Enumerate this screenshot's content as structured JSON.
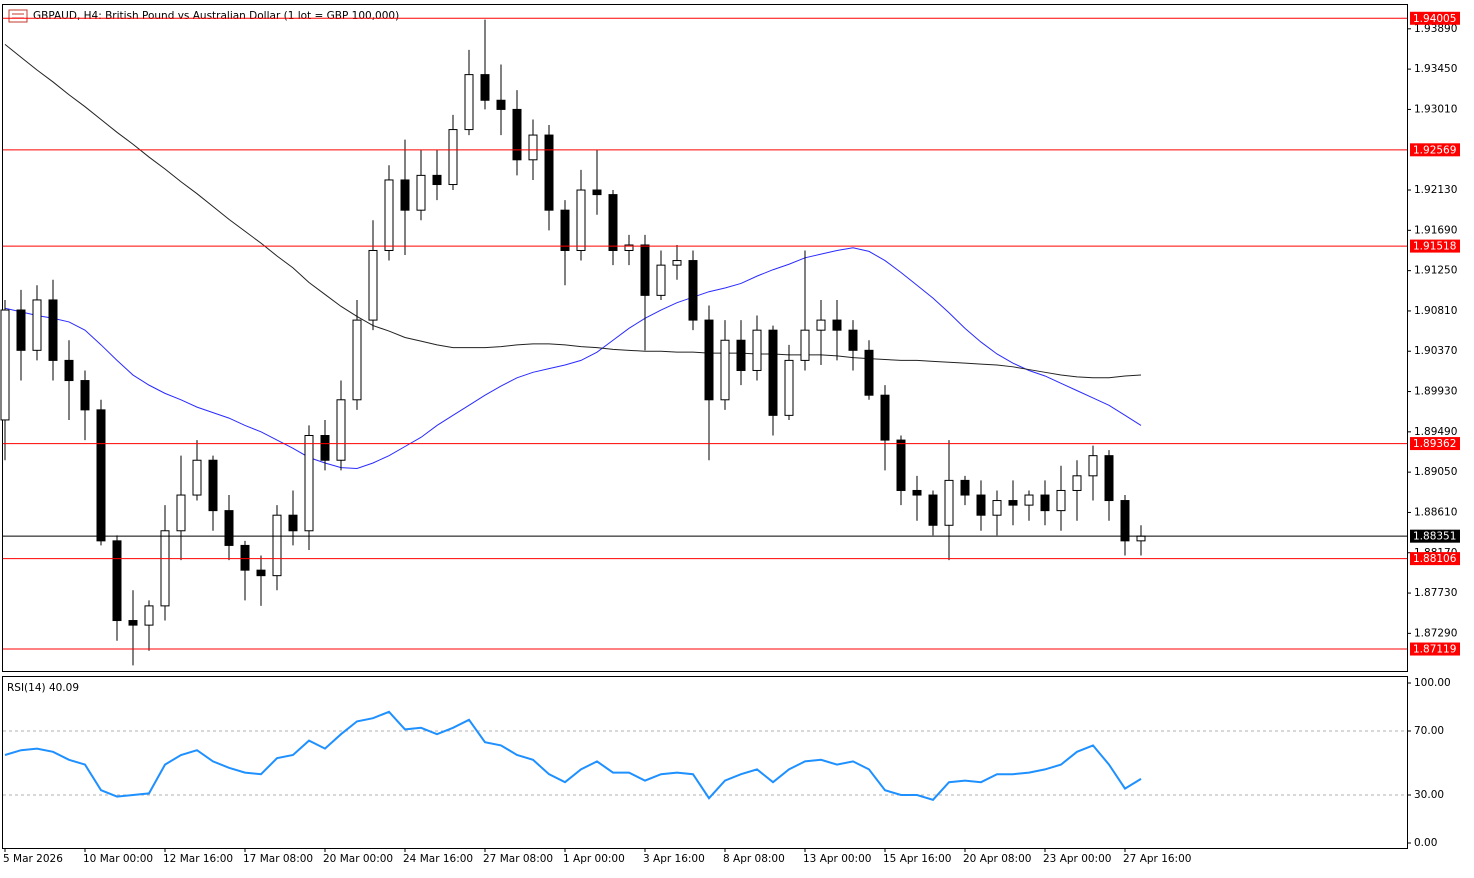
{
  "chart_data": [
    {
      "type": "candlestick",
      "title": "GBPAUD, H4:  British Pound vs Australian Dollar (1 lot = GBP 100,000)",
      "categories": [
        "5 Mar 2026",
        null,
        null,
        null,
        null,
        "10 Mar 00:00",
        null,
        null,
        null,
        null,
        "12 Mar 16:00",
        null,
        null,
        null,
        null,
        "17 Mar 08:00",
        null,
        null,
        null,
        null,
        "20 Mar 00:00",
        null,
        null,
        null,
        null,
        "24 Mar 16:00",
        null,
        null,
        null,
        null,
        "27 Mar 08:00",
        null,
        null,
        null,
        null,
        "1 Apr 00:00",
        null,
        null,
        null,
        null,
        "3 Apr 16:00",
        null,
        null,
        null,
        null,
        "8 Apr 08:00",
        null,
        null,
        null,
        null,
        "13 Apr 00:00",
        null,
        null,
        null,
        null,
        "15 Apr 16:00",
        null,
        null,
        null,
        null,
        "20 Apr 08:00",
        null,
        null,
        null,
        null,
        "23 Apr 00:00",
        null,
        null,
        null,
        null,
        "27 Apr 16:00",
        null
      ],
      "open": [
        1.8962,
        1.9082,
        1.9038,
        1.9093,
        1.9027,
        1.9005,
        1.8973,
        1.883,
        1.8743,
        1.8738,
        1.8759,
        1.8841,
        1.888,
        1.8918,
        1.8863,
        1.8825,
        1.8798,
        1.8792,
        1.8858,
        1.8841,
        1.8945,
        1.8918,
        1.8984,
        1.9071,
        1.9147,
        1.9224,
        1.9191,
        1.9229,
        1.9219,
        1.9279,
        1.9339,
        1.9311,
        1.9301,
        1.9246,
        1.9273,
        1.9191,
        1.9147,
        1.9213,
        1.9208,
        1.9147,
        1.9153,
        1.9098,
        1.9131,
        1.9136,
        1.9071,
        1.8984,
        1.9049,
        1.9016,
        1.906,
        1.8967,
        1.9027,
        1.906,
        1.9071,
        1.906,
        1.9038,
        1.8989,
        1.894,
        1.8885,
        1.888,
        1.8847,
        1.8896,
        1.888,
        1.8858,
        1.8874,
        1.8869,
        1.888,
        1.8863,
        1.8885,
        1.8901,
        1.8923,
        1.8874,
        1.883
      ],
      "high": [
        1.9093,
        1.9104,
        1.9109,
        1.9115,
        1.9049,
        1.9016,
        1.8984,
        1.8836,
        1.8776,
        1.8765,
        1.8869,
        1.8923,
        1.894,
        1.8923,
        1.888,
        1.883,
        1.8814,
        1.8869,
        1.8885,
        1.8956,
        1.8962,
        1.9005,
        1.9093,
        1.918,
        1.924,
        1.9268,
        1.9257,
        1.9257,
        1.9295,
        1.9366,
        1.9399,
        1.935,
        1.9322,
        1.929,
        1.9284,
        1.9202,
        1.9235,
        1.9257,
        1.9213,
        1.9164,
        1.9164,
        1.9147,
        1.9153,
        1.9147,
        1.9087,
        1.9071,
        1.9071,
        1.9076,
        1.9065,
        1.9044,
        1.9147,
        1.9093,
        1.9093,
        1.9071,
        1.9049,
        1.9,
        1.8945,
        1.8901,
        1.8885,
        1.894,
        1.8901,
        1.8896,
        1.8885,
        1.8896,
        1.8885,
        1.8896,
        1.8912,
        1.8918,
        1.8934,
        1.8929,
        1.888,
        1.8847
      ],
      "low": [
        1.8918,
        1.9005,
        1.9027,
        1.9005,
        1.8962,
        1.894,
        1.8825,
        1.8721,
        1.8694,
        1.871,
        1.8743,
        1.8809,
        1.8874,
        1.8841,
        1.8809,
        1.8765,
        1.8759,
        1.8776,
        1.8825,
        1.882,
        1.8907,
        1.8907,
        1.8973,
        1.906,
        1.9136,
        1.9142,
        1.918,
        1.9202,
        1.9213,
        1.9273,
        1.9301,
        1.9273,
        1.9229,
        1.9224,
        1.9169,
        1.9109,
        1.9136,
        1.9186,
        1.9131,
        1.9131,
        1.9038,
        1.9093,
        1.9115,
        1.906,
        1.8918,
        1.8973,
        1.9,
        1.9005,
        1.8945,
        1.8962,
        1.9016,
        1.9022,
        1.9027,
        1.9016,
        1.8984,
        1.8907,
        1.8869,
        1.8852,
        1.8836,
        1.8809,
        1.8869,
        1.8841,
        1.8836,
        1.8847,
        1.8852,
        1.8847,
        1.8841,
        1.8852,
        1.8874,
        1.8852,
        1.8814,
        1.8814
      ],
      "close": [
        1.9082,
        1.9038,
        1.9093,
        1.9027,
        1.9005,
        1.8973,
        1.883,
        1.8743,
        1.8738,
        1.8759,
        1.8841,
        1.888,
        1.8918,
        1.8863,
        1.8825,
        1.8798,
        1.8792,
        1.8858,
        1.8841,
        1.8945,
        1.8918,
        1.8984,
        1.9071,
        1.9147,
        1.9224,
        1.9191,
        1.9229,
        1.9219,
        1.9279,
        1.9339,
        1.9311,
        1.9301,
        1.9246,
        1.9273,
        1.9191,
        1.9147,
        1.9213,
        1.9208,
        1.9147,
        1.9153,
        1.9098,
        1.9131,
        1.9136,
        1.9071,
        1.8984,
        1.9049,
        1.9016,
        1.906,
        1.8967,
        1.9027,
        1.906,
        1.9071,
        1.906,
        1.9038,
        1.8989,
        1.894,
        1.8885,
        1.888,
        1.8847,
        1.8896,
        1.888,
        1.8858,
        1.8874,
        1.8869,
        1.888,
        1.8863,
        1.8885,
        1.8901,
        1.8923,
        1.8874,
        1.883,
        1.88351
      ],
      "color": "#000000",
      "lines": [
        {
          "color": "#2a2aff",
          "values": [
            1.9084,
            1.908,
            1.9076,
            1.9073,
            1.9069,
            1.906,
            1.9044,
            1.9027,
            1.9011,
            1.9,
            1.8991,
            1.8984,
            1.8976,
            1.897,
            1.8964,
            1.8956,
            1.8949,
            1.894,
            1.8931,
            1.8921,
            1.8915,
            1.891,
            1.8909,
            1.8915,
            1.8923,
            1.8933,
            1.8943,
            1.8956,
            1.8967,
            1.8978,
            1.8989,
            1.8999,
            1.9008,
            1.9014,
            1.9018,
            1.9022,
            1.9027,
            1.9036,
            1.9049,
            1.9062,
            1.9073,
            1.9082,
            1.909,
            1.9096,
            1.9102,
            1.9106,
            1.9111,
            1.9119,
            1.9126,
            1.9132,
            1.9139,
            1.9143,
            1.9147,
            1.915,
            1.9146,
            1.9136,
            1.9123,
            1.9109,
            1.9095,
            1.9079,
            1.9062,
            1.9047,
            1.9034,
            1.9024,
            1.9016,
            1.901,
            1.9002,
            1.8994,
            1.8986,
            1.8978,
            1.8967,
            1.8956
          ]
        },
        {
          "color": "#222222",
          "values": [
            1.9372,
            1.9358,
            1.9344,
            1.9331,
            1.9317,
            1.9304,
            1.929,
            1.9276,
            1.9263,
            1.9249,
            1.9236,
            1.9222,
            1.9209,
            1.9195,
            1.9181,
            1.9168,
            1.9155,
            1.9141,
            1.9128,
            1.9112,
            1.9099,
            1.9086,
            1.9075,
            1.9065,
            1.9059,
            1.9052,
            1.9048,
            1.9044,
            1.9041,
            1.9041,
            1.9041,
            1.9042,
            1.9044,
            1.9045,
            1.9045,
            1.9044,
            1.9042,
            1.9041,
            1.9039,
            1.9038,
            1.9037,
            1.9037,
            1.9036,
            1.9036,
            1.9035,
            1.9035,
            1.9035,
            1.9034,
            1.9034,
            1.9033,
            1.9033,
            1.9033,
            1.9032,
            1.903,
            1.9029,
            1.9028,
            1.9027,
            1.9027,
            1.9026,
            1.9025,
            1.9024,
            1.9023,
            1.9022,
            1.902,
            1.9017,
            1.9014,
            1.9011,
            1.9009,
            1.9008,
            1.9008,
            1.901,
            1.9011
          ]
        }
      ],
      "levels": [
        {
          "value": 1.94005,
          "color": "#ff0000"
        },
        {
          "value": 1.92569,
          "color": "#ff0000"
        },
        {
          "value": 1.91518,
          "color": "#ff0000"
        },
        {
          "value": 1.89362,
          "color": "#ff0000"
        },
        {
          "value": 1.88106,
          "color": "#ff0000"
        },
        {
          "value": 1.87119,
          "color": "#ff0000"
        }
      ],
      "current": {
        "value": 1.88351,
        "color": "#000000"
      },
      "ylim": [
        1.8689,
        1.9415
      ],
      "yticks": [
        {
          "value": 1.9389,
          "label": "1.93890"
        },
        {
          "value": 1.9345,
          "label": "1.93450"
        },
        {
          "value": 1.9301,
          "label": "1.93010"
        },
        {
          "value": 1.9213,
          "label": "1.92130"
        },
        {
          "value": 1.9169,
          "label": "1.91690"
        },
        {
          "value": 1.9125,
          "label": "1.91250"
        },
        {
          "value": 1.9081,
          "label": "1.90810"
        },
        {
          "value": 1.9037,
          "label": "1.90370"
        },
        {
          "value": 1.8993,
          "label": "1.89930"
        },
        {
          "value": 1.8949,
          "label": "1.89490"
        },
        {
          "value": 1.8905,
          "label": "1.89050"
        },
        {
          "value": 1.8861,
          "label": "1.88610"
        },
        {
          "value": 1.8817,
          "label": "1.88170"
        },
        {
          "value": 1.8773,
          "label": "1.87730"
        },
        {
          "value": 1.8729,
          "label": "1.87290"
        }
      ]
    },
    {
      "type": "line",
      "title": "RSI(14) 40.09",
      "values": [
        55,
        58,
        59,
        57,
        52,
        49,
        33,
        29,
        30,
        31,
        49,
        55,
        58,
        51,
        47,
        44,
        43,
        53,
        55,
        64,
        59,
        68,
        76,
        78,
        82,
        71,
        72,
        68,
        72,
        77,
        63,
        61,
        55,
        52,
        43,
        38,
        46,
        51,
        44,
        44,
        39,
        43,
        44,
        43,
        28,
        39,
        43,
        46,
        38,
        46,
        51,
        52,
        49,
        51,
        46,
        33,
        30,
        30,
        27,
        38,
        39,
        38,
        43,
        43,
        44,
        46,
        49,
        57,
        61,
        49,
        34,
        40.09
      ],
      "color": "#1e90ff",
      "levels": [
        70,
        30
      ],
      "ylim": [
        0,
        100
      ],
      "yticks": [
        {
          "value": 100,
          "label": "100.00"
        },
        {
          "value": 70,
          "label": "70.00"
        },
        {
          "value": 30,
          "label": "30.00"
        },
        {
          "value": 0,
          "label": "0.00"
        }
      ]
    }
  ]
}
